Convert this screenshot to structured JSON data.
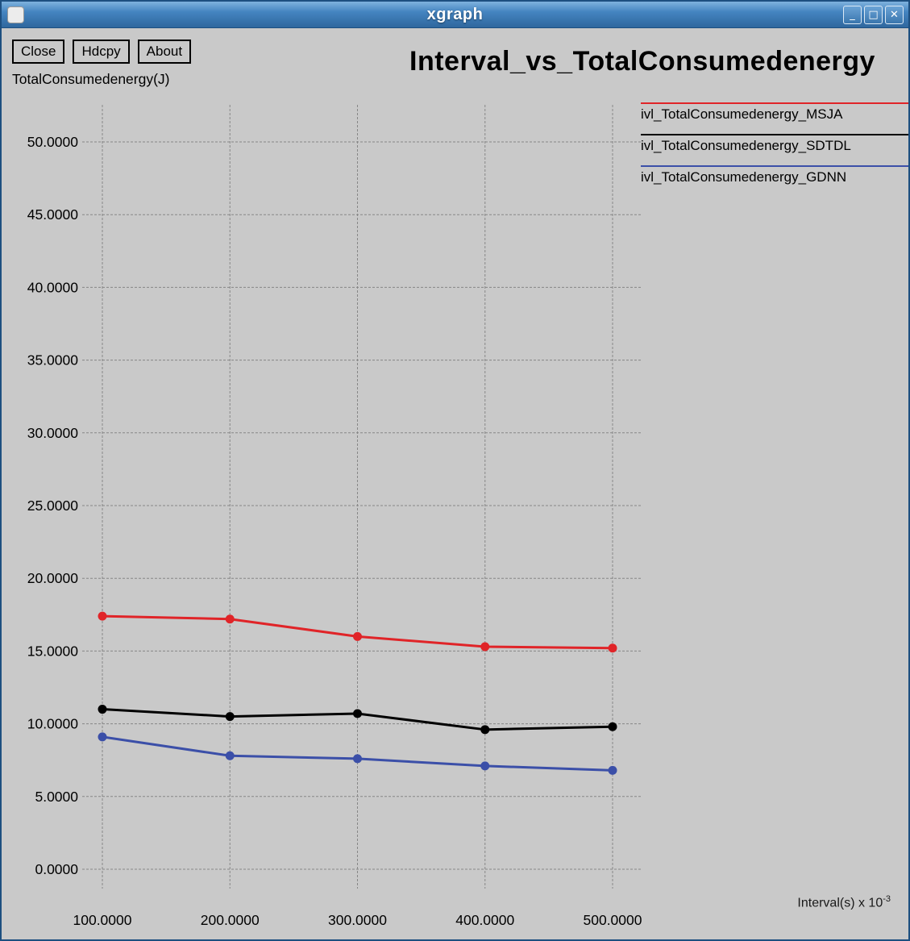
{
  "window": {
    "title": "xgraph",
    "controls": {
      "minimize": "_",
      "maximize": "□",
      "close": "✕"
    }
  },
  "toolbar": {
    "buttons": [
      {
        "label": "Close"
      },
      {
        "label": "Hdcpy"
      },
      {
        "label": "About"
      }
    ]
  },
  "xaxis": {
    "label_base": "Interval(s) x 10",
    "label_exponent": "-3"
  },
  "chart_data": {
    "type": "line",
    "title": "Interval_vs_TotalConsumedenergy",
    "ylabel": "TotalConsumedenergy(J)",
    "xlabel": "Interval(s) x 10^-3",
    "x": [
      100,
      200,
      300,
      400,
      500
    ],
    "x_tick_labels": [
      "100.0000",
      "200.0000",
      "300.0000",
      "400.0000",
      "500.0000"
    ],
    "y_ticks": [
      0,
      5,
      10,
      15,
      20,
      25,
      30,
      35,
      40,
      45,
      50
    ],
    "y_tick_labels": [
      "0.0000",
      "5.0000",
      "10.0000",
      "15.0000",
      "20.0000",
      "25.0000",
      "30.0000",
      "35.0000",
      "40.0000",
      "45.0000",
      "50.0000"
    ],
    "ylim": [
      0,
      52
    ],
    "grid": true,
    "legend_position": "top-right",
    "series": [
      {
        "name": "ivl_TotalConsumedenergy_MSJA",
        "color": "#e02428",
        "values": [
          17.4,
          17.2,
          16.0,
          15.3,
          15.2
        ]
      },
      {
        "name": "ivl_TotalConsumedenergy_SDTDL",
        "color": "#000000",
        "values": [
          11.0,
          10.5,
          10.7,
          9.6,
          9.8
        ]
      },
      {
        "name": "ivl_TotalConsumedenergy_GDNN",
        "color": "#3b4fa8",
        "values": [
          9.1,
          7.8,
          7.6,
          7.1,
          6.8
        ]
      }
    ]
  }
}
